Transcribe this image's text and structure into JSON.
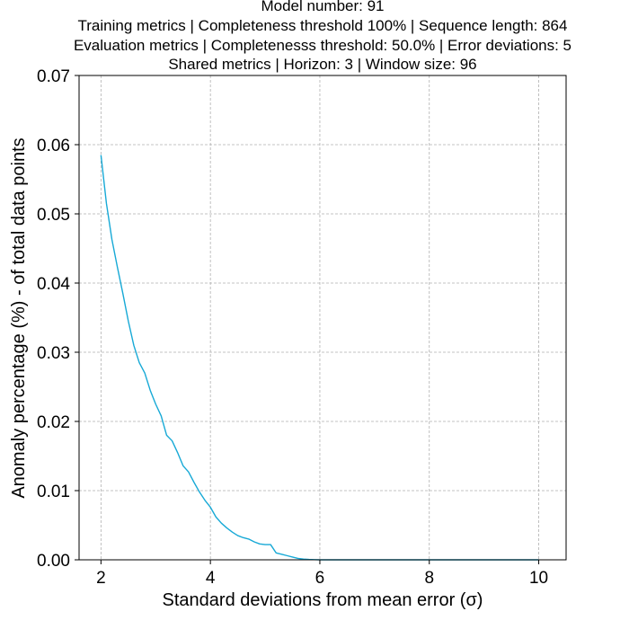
{
  "chart_data": {
    "type": "line",
    "title_lines": [
      "Model number: 91",
      "Training metrics | Completeness threshold 100% | Sequence length: 864",
      "Evaluation metrics | Completenesss threshold: 50.0% | Error deviations: 5",
      "Shared metrics | Horizon: 3 | Window size: 96"
    ],
    "xlabel": "Standard deviations from mean error (σ)",
    "ylabel": "Anomaly percentage (%) - of total data points",
    "xlim": [
      1.6,
      10.5
    ],
    "ylim": [
      0.0,
      0.07
    ],
    "x_ticks": [
      2,
      4,
      6,
      8,
      10
    ],
    "x_tick_labels": [
      "2",
      "4",
      "6",
      "8",
      "10"
    ],
    "y_ticks": [
      0.0,
      0.01,
      0.02,
      0.03,
      0.04,
      0.05,
      0.06,
      0.07
    ],
    "y_tick_labels": [
      "0.00",
      "0.01",
      "0.02",
      "0.03",
      "0.04",
      "0.05",
      "0.06",
      "0.07"
    ],
    "grid": true,
    "line_color": "#17a9d6",
    "series": [
      {
        "x": [
          2.0,
          2.1,
          2.2,
          2.3,
          2.4,
          2.5,
          2.6,
          2.7,
          2.8,
          2.9,
          3.0,
          3.1,
          3.2,
          3.3,
          3.4,
          3.5,
          3.6,
          3.7,
          3.8,
          3.9,
          4.0,
          4.1,
          4.2,
          4.3,
          4.4,
          4.5,
          4.6,
          4.7,
          4.8,
          4.9,
          5.0,
          5.1,
          5.2,
          5.3,
          5.4,
          5.5,
          5.6,
          5.7,
          5.8,
          5.9,
          6.0,
          6.5,
          7.0,
          7.5,
          8.0,
          8.5,
          9.0,
          9.5,
          10.0
        ],
        "y": [
          0.0585,
          0.0515,
          0.0463,
          0.0423,
          0.0385,
          0.0345,
          0.031,
          0.0285,
          0.027,
          0.0245,
          0.0225,
          0.0208,
          0.018,
          0.0172,
          0.0155,
          0.0136,
          0.0127,
          0.0112,
          0.0098,
          0.0086,
          0.0076,
          0.0062,
          0.0053,
          0.0046,
          0.004,
          0.0035,
          0.0032,
          0.003,
          0.0026,
          0.0023,
          0.0022,
          0.0022,
          0.001,
          0.0008,
          0.0006,
          0.0004,
          0.0002,
          0.0001,
          5e-05,
          2e-05,
          0.0,
          0.0,
          0.0,
          0.0,
          0.0,
          0.0,
          0.0,
          0.0,
          0.0
        ]
      }
    ]
  }
}
